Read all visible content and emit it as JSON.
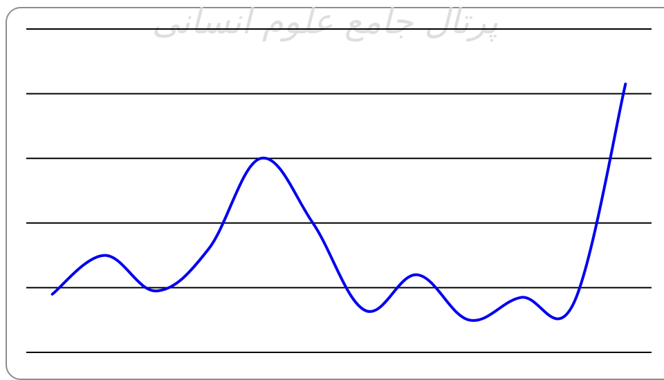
{
  "watermark": {
    "text": "پرتال جامع علوم انسانی"
  },
  "colors": {
    "line": "#0000ee",
    "grid": "#000000",
    "frame": "#8c8c8c",
    "watermark": "#d9d9d9"
  },
  "chart_data": {
    "type": "line",
    "title": "",
    "xlabel": "",
    "ylabel": "",
    "grid": true,
    "gridlines": 6,
    "xlim": [
      0,
      12
    ],
    "ylim": [
      0,
      5
    ],
    "series": [
      {
        "values": [
          [
            0.5,
            0.9
          ],
          [
            1.5,
            1.5
          ],
          [
            2.5,
            0.95
          ],
          [
            3.5,
            1.6
          ],
          [
            4.5,
            3.0
          ],
          [
            5.5,
            2.0
          ],
          [
            6.5,
            0.65
          ],
          [
            7.5,
            1.2
          ],
          [
            8.5,
            0.5
          ],
          [
            9.5,
            0.85
          ],
          [
            10.5,
            0.75
          ],
          [
            11.5,
            4.15
          ]
        ]
      }
    ]
  }
}
